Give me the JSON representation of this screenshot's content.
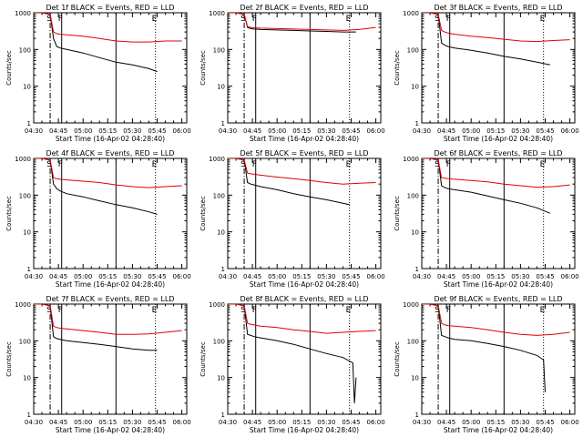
{
  "figure": {
    "xlabel": "Start Time (16-Apr-02 04:28:40)",
    "ylabel": "Counts/sec",
    "x_tick_labels": [
      "04:30",
      "04:45",
      "05:00",
      "05:15",
      "05:30",
      "05:45",
      "06:00"
    ],
    "y_tick_labels": [
      "1",
      "10",
      "100",
      "1000"
    ],
    "region_markers": [
      "S",
      "F",
      "E"
    ],
    "colors": {
      "events": "#000000",
      "lld": "#e00000",
      "background": "#ffffff"
    }
  },
  "chart_data": [
    {
      "type": "line",
      "title": "Det 1f BLACK = Events, RED = LLD",
      "x_unit": "minutes after 04:30",
      "x": [
        0,
        15,
        30,
        45,
        60,
        75,
        90
      ],
      "xlim": [
        0,
        93
      ],
      "ylim": [
        1,
        1000
      ],
      "log_y": true,
      "grid": false,
      "series": [
        {
          "name": "Events",
          "color": "#000000",
          "x": [
            0,
            5,
            10,
            12,
            14,
            16,
            20,
            30,
            40,
            50,
            60,
            70,
            75
          ],
          "values": [
            1000,
            1000,
            900,
            200,
            120,
            110,
            100,
            80,
            60,
            45,
            38,
            30,
            25
          ]
        },
        {
          "name": "LLD",
          "color": "#e00000",
          "x": [
            0,
            5,
            10,
            12,
            14,
            16,
            20,
            30,
            40,
            50,
            60,
            70,
            80,
            90
          ],
          "values": [
            1000,
            1000,
            900,
            300,
            270,
            260,
            250,
            230,
            200,
            170,
            160,
            160,
            170,
            170
          ]
        }
      ],
      "vlines": [
        {
          "x": 10,
          "style": "dash-dot",
          "label": "S"
        },
        {
          "x": 17,
          "style": "solid",
          "label": "F"
        },
        {
          "x": 50,
          "style": "solid"
        },
        {
          "x": 74,
          "style": "dotted",
          "label": "E"
        }
      ]
    },
    {
      "type": "line",
      "title": "Det 2f BLACK = Events, RED = LLD",
      "x_unit": "minutes after 04:30",
      "x": [
        0,
        15,
        30,
        45,
        60,
        75,
        90
      ],
      "xlim": [
        0,
        93
      ],
      "ylim": [
        1,
        1000
      ],
      "log_y": true,
      "grid": false,
      "series": [
        {
          "name": "Events",
          "color": "#000000",
          "x": [
            0,
            5,
            10,
            12,
            14,
            16,
            20,
            30,
            40,
            50,
            60,
            70,
            78
          ],
          "values": [
            1000,
            1000,
            900,
            400,
            370,
            360,
            350,
            340,
            330,
            320,
            310,
            300,
            300
          ]
        },
        {
          "name": "LLD",
          "color": "#e00000",
          "x": [
            0,
            5,
            10,
            12,
            14,
            16,
            20,
            30,
            40,
            50,
            60,
            70,
            80,
            90
          ],
          "values": [
            1000,
            1000,
            900,
            420,
            400,
            390,
            380,
            370,
            360,
            350,
            340,
            330,
            350,
            400
          ]
        }
      ],
      "vlines": [
        {
          "x": 10,
          "style": "dash-dot",
          "label": "S"
        },
        {
          "x": 17,
          "style": "solid",
          "label": "F"
        },
        {
          "x": 50,
          "style": "solid"
        },
        {
          "x": 74,
          "style": "dotted",
          "label": "E"
        }
      ]
    },
    {
      "type": "line",
      "title": "Det 3f BLACK = Events, RED = LLD",
      "x_unit": "minutes after 04:30",
      "x": [
        0,
        15,
        30,
        45,
        60,
        75,
        90
      ],
      "xlim": [
        0,
        93
      ],
      "ylim": [
        1,
        1000
      ],
      "log_y": true,
      "grid": false,
      "series": [
        {
          "name": "Events",
          "color": "#000000",
          "x": [
            0,
            5,
            10,
            12,
            14,
            16,
            20,
            30,
            40,
            50,
            60,
            70,
            78
          ],
          "values": [
            1000,
            1000,
            900,
            150,
            130,
            120,
            110,
            95,
            80,
            65,
            55,
            45,
            38
          ]
        },
        {
          "name": "LLD",
          "color": "#e00000",
          "x": [
            0,
            5,
            10,
            12,
            14,
            16,
            20,
            30,
            40,
            50,
            60,
            70,
            80,
            90
          ],
          "values": [
            1000,
            1000,
            900,
            330,
            300,
            280,
            260,
            230,
            210,
            190,
            170,
            165,
            175,
            185
          ]
        }
      ],
      "vlines": [
        {
          "x": 10,
          "style": "dash-dot",
          "label": "S"
        },
        {
          "x": 17,
          "style": "solid",
          "label": "F"
        },
        {
          "x": 50,
          "style": "solid"
        },
        {
          "x": 74,
          "style": "dotted",
          "label": "E"
        }
      ]
    },
    {
      "type": "line",
      "title": "Det 4f BLACK = Events, RED = LLD",
      "x_unit": "minutes after 04:30",
      "x": [
        0,
        15,
        30,
        45,
        60,
        75,
        90
      ],
      "xlim": [
        0,
        93
      ],
      "ylim": [
        1,
        1000
      ],
      "log_y": true,
      "grid": false,
      "series": [
        {
          "name": "Events",
          "color": "#000000",
          "x": [
            0,
            5,
            10,
            12,
            14,
            16,
            20,
            30,
            40,
            50,
            60,
            70,
            75
          ],
          "values": [
            1000,
            1000,
            900,
            200,
            150,
            130,
            110,
            90,
            70,
            55,
            45,
            35,
            30
          ]
        },
        {
          "name": "LLD",
          "color": "#e00000",
          "x": [
            0,
            5,
            10,
            12,
            14,
            16,
            20,
            30,
            40,
            50,
            60,
            70,
            80,
            90
          ],
          "values": [
            1000,
            1000,
            900,
            300,
            280,
            270,
            260,
            240,
            220,
            190,
            170,
            160,
            170,
            180
          ]
        }
      ],
      "vlines": [
        {
          "x": 10,
          "style": "dash-dot",
          "label": "S"
        },
        {
          "x": 17,
          "style": "solid",
          "label": "F"
        },
        {
          "x": 50,
          "style": "solid"
        },
        {
          "x": 74,
          "style": "dotted",
          "label": "E"
        }
      ]
    },
    {
      "type": "line",
      "title": "Det 5f BLACK = Events, RED = LLD",
      "x_unit": "minutes after 04:30",
      "x": [
        0,
        15,
        30,
        45,
        60,
        75,
        90
      ],
      "xlim": [
        0,
        93
      ],
      "ylim": [
        1,
        1000
      ],
      "log_y": true,
      "grid": false,
      "series": [
        {
          "name": "Events",
          "color": "#000000",
          "x": [
            0,
            5,
            10,
            12,
            14,
            16,
            20,
            30,
            40,
            50,
            60,
            70,
            74
          ],
          "values": [
            1000,
            1000,
            900,
            220,
            200,
            190,
            170,
            140,
            110,
            90,
            75,
            60,
            55
          ]
        },
        {
          "name": "LLD",
          "color": "#e00000",
          "x": [
            0,
            5,
            10,
            12,
            14,
            16,
            20,
            30,
            40,
            50,
            60,
            70,
            80,
            90
          ],
          "values": [
            1000,
            1000,
            900,
            400,
            380,
            370,
            350,
            310,
            280,
            250,
            220,
            200,
            210,
            220
          ]
        }
      ],
      "vlines": [
        {
          "x": 10,
          "style": "dash-dot",
          "label": "S"
        },
        {
          "x": 17,
          "style": "solid",
          "label": "F"
        },
        {
          "x": 50,
          "style": "solid"
        },
        {
          "x": 74,
          "style": "dotted",
          "label": "E"
        }
      ]
    },
    {
      "type": "line",
      "title": "Det 6f BLACK = Events, RED = LLD",
      "x_unit": "minutes after 04:30",
      "x": [
        0,
        15,
        30,
        45,
        60,
        75,
        90
      ],
      "xlim": [
        0,
        93
      ],
      "ylim": [
        1,
        1000
      ],
      "log_y": true,
      "grid": false,
      "series": [
        {
          "name": "Events",
          "color": "#000000",
          "x": [
            0,
            5,
            10,
            12,
            14,
            16,
            20,
            30,
            40,
            50,
            60,
            70,
            78
          ],
          "values": [
            1000,
            1000,
            900,
            180,
            160,
            150,
            140,
            120,
            95,
            75,
            60,
            45,
            32
          ]
        },
        {
          "name": "LLD",
          "color": "#e00000",
          "x": [
            0,
            5,
            10,
            12,
            14,
            16,
            20,
            30,
            40,
            50,
            60,
            70,
            80,
            90
          ],
          "values": [
            1000,
            1000,
            900,
            300,
            290,
            280,
            270,
            250,
            230,
            200,
            180,
            165,
            170,
            190
          ]
        }
      ],
      "vlines": [
        {
          "x": 10,
          "style": "dash-dot",
          "label": "S"
        },
        {
          "x": 17,
          "style": "solid",
          "label": "F"
        },
        {
          "x": 50,
          "style": "solid"
        },
        {
          "x": 74,
          "style": "dotted",
          "label": "E"
        }
      ]
    },
    {
      "type": "line",
      "title": "Det 7f BLACK = Events, RED = LLD",
      "x_unit": "minutes after 04:30",
      "x": [
        0,
        15,
        30,
        45,
        60,
        75,
        90
      ],
      "xlim": [
        0,
        93
      ],
      "ylim": [
        1,
        1000
      ],
      "log_y": true,
      "grid": false,
      "series": [
        {
          "name": "Events",
          "color": "#000000",
          "x": [
            0,
            5,
            10,
            12,
            14,
            16,
            20,
            30,
            40,
            50,
            60,
            70,
            75
          ],
          "values": [
            1000,
            1000,
            900,
            130,
            115,
            110,
            100,
            90,
            80,
            70,
            60,
            55,
            55
          ]
        },
        {
          "name": "LLD",
          "color": "#e00000",
          "x": [
            0,
            5,
            10,
            12,
            14,
            16,
            20,
            30,
            40,
            50,
            60,
            70,
            80,
            90
          ],
          "values": [
            1000,
            1000,
            900,
            250,
            230,
            220,
            210,
            190,
            170,
            150,
            150,
            155,
            170,
            190
          ]
        }
      ],
      "vlines": [
        {
          "x": 10,
          "style": "dash-dot",
          "label": "S"
        },
        {
          "x": 17,
          "style": "solid",
          "label": "F"
        },
        {
          "x": 50,
          "style": "solid"
        },
        {
          "x": 74,
          "style": "dotted",
          "label": "E"
        }
      ]
    },
    {
      "type": "line",
      "title": "Det 8f BLACK = Events, RED = LLD",
      "x_unit": "minutes after 04:30",
      "x": [
        0,
        15,
        30,
        45,
        60,
        75,
        90
      ],
      "xlim": [
        0,
        93
      ],
      "ylim": [
        1,
        1000
      ],
      "log_y": true,
      "grid": false,
      "series": [
        {
          "name": "Events",
          "color": "#000000",
          "x": [
            0,
            5,
            10,
            12,
            14,
            16,
            20,
            30,
            40,
            50,
            60,
            70,
            76,
            77,
            78
          ],
          "values": [
            1000,
            1000,
            900,
            150,
            140,
            130,
            120,
            100,
            80,
            60,
            45,
            35,
            25,
            2,
            10
          ]
        },
        {
          "name": "LLD",
          "color": "#e00000",
          "x": [
            0,
            5,
            10,
            12,
            14,
            16,
            20,
            30,
            40,
            50,
            60,
            70,
            80,
            90
          ],
          "values": [
            1000,
            1000,
            900,
            300,
            280,
            270,
            250,
            230,
            200,
            180,
            160,
            170,
            180,
            190
          ]
        }
      ],
      "vlines": [
        {
          "x": 10,
          "style": "dash-dot",
          "label": "S"
        },
        {
          "x": 17,
          "style": "solid",
          "label": "F"
        },
        {
          "x": 50,
          "style": "solid"
        },
        {
          "x": 74,
          "style": "dotted",
          "label": "E"
        }
      ]
    },
    {
      "type": "line",
      "title": "Det 9f BLACK = Events, RED = LLD",
      "x_unit": "minutes after 04:30",
      "x": [
        0,
        15,
        30,
        45,
        60,
        75,
        90
      ],
      "xlim": [
        0,
        93
      ],
      "ylim": [
        1,
        1000
      ],
      "log_y": true,
      "grid": false,
      "series": [
        {
          "name": "Events",
          "color": "#000000",
          "x": [
            0,
            5,
            10,
            12,
            14,
            16,
            20,
            30,
            40,
            50,
            60,
            70,
            74,
            75
          ],
          "values": [
            1000,
            1000,
            900,
            140,
            130,
            120,
            110,
            100,
            85,
            70,
            55,
            40,
            30,
            4
          ]
        },
        {
          "name": "LLD",
          "color": "#e00000",
          "x": [
            0,
            5,
            10,
            12,
            14,
            16,
            20,
            30,
            40,
            50,
            60,
            70,
            80,
            90
          ],
          "values": [
            1000,
            1000,
            900,
            300,
            270,
            260,
            250,
            230,
            200,
            170,
            150,
            140,
            150,
            170
          ]
        }
      ],
      "vlines": [
        {
          "x": 10,
          "style": "dash-dot",
          "label": "S"
        },
        {
          "x": 17,
          "style": "solid",
          "label": "F"
        },
        {
          "x": 50,
          "style": "solid"
        },
        {
          "x": 74,
          "style": "dotted",
          "label": "E"
        }
      ]
    }
  ]
}
